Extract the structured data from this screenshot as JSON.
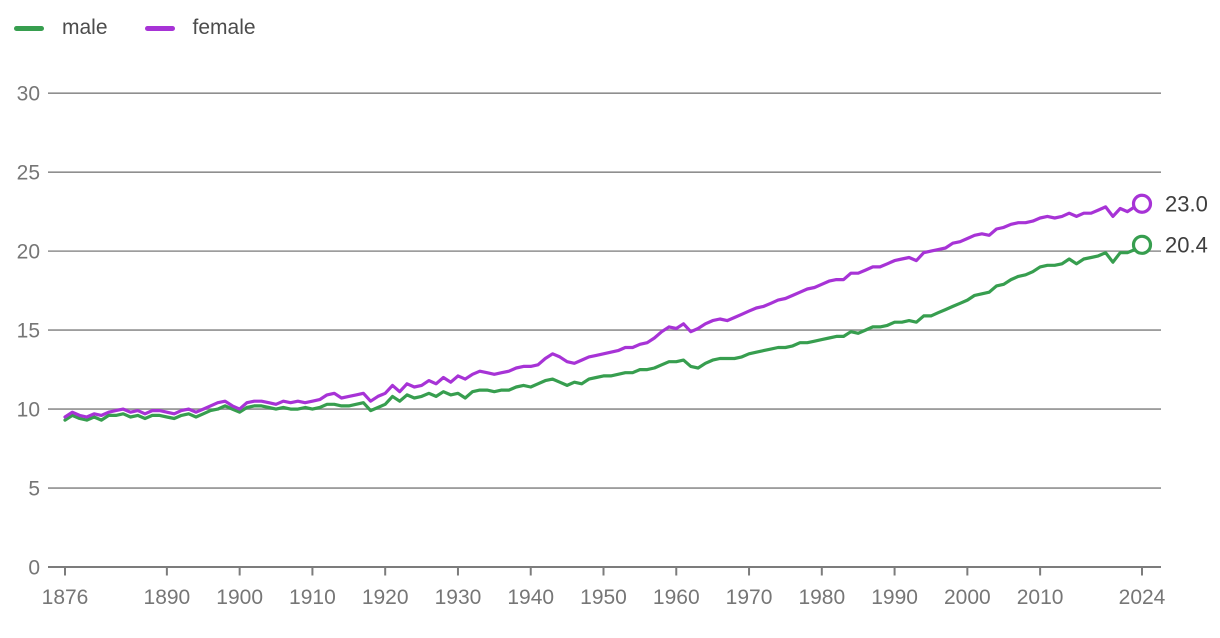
{
  "legend": {
    "items": [
      {
        "label": "male",
        "color": "#379e4f"
      },
      {
        "label": "female",
        "color": "#a733d6"
      }
    ]
  },
  "chart_data": {
    "type": "line",
    "title": "",
    "xlabel": "",
    "ylabel": "",
    "x_start": 1876,
    "x_end": 2024,
    "ylim": [
      0,
      30
    ],
    "y_ticks": [
      0,
      5,
      10,
      15,
      20,
      25,
      30
    ],
    "x_ticks": [
      1876,
      1890,
      1900,
      1910,
      1920,
      1930,
      1940,
      1950,
      1960,
      1970,
      1980,
      1990,
      2000,
      2010,
      2024
    ],
    "grid": "horizontal",
    "legend_position": "top-left",
    "colors": {
      "grid": "#8f8f8f",
      "axis": "#7c7c7c",
      "tick_text": "#767676",
      "end_label_text": "#3e3e3e"
    },
    "series": [
      {
        "name": "male",
        "color": "#379e4f",
        "end_label": "20.4",
        "values": [
          9.3,
          9.6,
          9.4,
          9.3,
          9.5,
          9.3,
          9.6,
          9.6,
          9.7,
          9.5,
          9.6,
          9.4,
          9.6,
          9.6,
          9.5,
          9.4,
          9.6,
          9.7,
          9.5,
          9.7,
          9.9,
          10.0,
          10.2,
          10.0,
          9.8,
          10.1,
          10.2,
          10.2,
          10.1,
          10.0,
          10.1,
          10.0,
          10.0,
          10.1,
          10.0,
          10.1,
          10.3,
          10.3,
          10.2,
          10.2,
          10.3,
          10.4,
          9.9,
          10.1,
          10.3,
          10.8,
          10.5,
          10.9,
          10.7,
          10.8,
          11.0,
          10.8,
          11.1,
          10.9,
          11.0,
          10.7,
          11.1,
          11.2,
          11.2,
          11.1,
          11.2,
          11.2,
          11.4,
          11.5,
          11.4,
          11.6,
          11.8,
          11.9,
          11.7,
          11.5,
          11.7,
          11.6,
          11.9,
          12.0,
          12.1,
          12.1,
          12.2,
          12.3,
          12.3,
          12.5,
          12.5,
          12.6,
          12.8,
          13.0,
          13.0,
          13.1,
          12.7,
          12.6,
          12.9,
          13.1,
          13.2,
          13.2,
          13.2,
          13.3,
          13.5,
          13.6,
          13.7,
          13.8,
          13.9,
          13.9,
          14.0,
          14.2,
          14.2,
          14.3,
          14.4,
          14.5,
          14.6,
          14.6,
          14.9,
          14.8,
          15.0,
          15.2,
          15.2,
          15.3,
          15.5,
          15.5,
          15.6,
          15.5,
          15.9,
          15.9,
          16.1,
          16.3,
          16.5,
          16.7,
          16.9,
          17.2,
          17.3,
          17.4,
          17.8,
          17.9,
          18.2,
          18.4,
          18.5,
          18.7,
          19.0,
          19.1,
          19.1,
          19.2,
          19.5,
          19.2,
          19.5,
          19.6,
          19.7,
          19.9,
          19.3,
          19.9,
          19.9,
          20.1,
          20.4
        ]
      },
      {
        "name": "female",
        "color": "#a733d6",
        "end_label": "23.0",
        "values": [
          9.5,
          9.8,
          9.6,
          9.5,
          9.7,
          9.6,
          9.8,
          9.9,
          10.0,
          9.8,
          9.9,
          9.7,
          9.9,
          9.9,
          9.8,
          9.7,
          9.9,
          10.0,
          9.8,
          10.0,
          10.2,
          10.4,
          10.5,
          10.2,
          10.0,
          10.4,
          10.5,
          10.5,
          10.4,
          10.3,
          10.5,
          10.4,
          10.5,
          10.4,
          10.5,
          10.6,
          10.9,
          11.0,
          10.7,
          10.8,
          10.9,
          11.0,
          10.5,
          10.8,
          11.0,
          11.5,
          11.1,
          11.6,
          11.4,
          11.5,
          11.8,
          11.6,
          12.0,
          11.7,
          12.1,
          11.9,
          12.2,
          12.4,
          12.3,
          12.2,
          12.3,
          12.4,
          12.6,
          12.7,
          12.7,
          12.8,
          13.2,
          13.5,
          13.3,
          13.0,
          12.9,
          13.1,
          13.3,
          13.4,
          13.5,
          13.6,
          13.7,
          13.9,
          13.9,
          14.1,
          14.2,
          14.5,
          14.9,
          15.2,
          15.1,
          15.4,
          14.9,
          15.1,
          15.4,
          15.6,
          15.7,
          15.6,
          15.8,
          16.0,
          16.2,
          16.4,
          16.5,
          16.7,
          16.9,
          17.0,
          17.2,
          17.4,
          17.6,
          17.7,
          17.9,
          18.1,
          18.2,
          18.2,
          18.6,
          18.6,
          18.8,
          19.0,
          19.0,
          19.2,
          19.4,
          19.5,
          19.6,
          19.4,
          19.9,
          20.0,
          20.1,
          20.2,
          20.5,
          20.6,
          20.8,
          21.0,
          21.1,
          21.0,
          21.4,
          21.5,
          21.7,
          21.8,
          21.8,
          21.9,
          22.1,
          22.2,
          22.1,
          22.2,
          22.4,
          22.2,
          22.4,
          22.4,
          22.6,
          22.8,
          22.2,
          22.7,
          22.5,
          22.8,
          23.0
        ]
      }
    ]
  }
}
